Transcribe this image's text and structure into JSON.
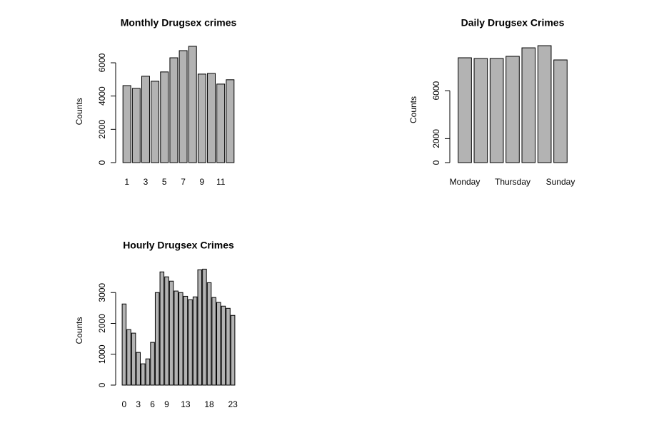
{
  "chart_data": [
    {
      "type": "bar",
      "title": "Monthly Drugsex  crimes",
      "y_label": "Counts",
      "color": "#b3b3b3",
      "categories": [
        "1",
        null,
        "3",
        null,
        "5",
        null,
        "7",
        null,
        "9",
        null,
        "11",
        null
      ],
      "values": [
        4630,
        4460,
        5190,
        4890,
        5450,
        6300,
        6730,
        6990,
        5320,
        5360,
        4720,
        4980
      ],
      "ylim": [
        0,
        7000
      ],
      "yticks": [
        0,
        2000,
        4000,
        6000
      ]
    },
    {
      "type": "bar",
      "title": "Daily  Drugsex  Crimes",
      "y_label": "Counts",
      "color": "#b3b3b3",
      "categories": [
        "Monday",
        null,
        null,
        "Thursday",
        null,
        null,
        "Sunday"
      ],
      "values": [
        8750,
        8690,
        8690,
        8870,
        9580,
        9760,
        8570
      ],
      "ylim": [
        0,
        10000
      ],
      "yticks": [
        0,
        2000,
        6000
      ]
    },
    {
      "type": "bar",
      "title": "Hourly  Drugsex  Crimes",
      "y_label": "Counts",
      "color": "#b3b3b3",
      "categories": [
        "0",
        null,
        null,
        "3",
        null,
        null,
        "6",
        null,
        null,
        "9",
        null,
        null,
        null,
        "13",
        null,
        null,
        null,
        null,
        "18",
        null,
        null,
        null,
        null,
        "23"
      ],
      "values": [
        2630,
        1800,
        1685,
        1060,
        690,
        850,
        1385,
        3000,
        3670,
        3510,
        3370,
        3050,
        3000,
        2880,
        2770,
        2860,
        3740,
        3760,
        3320,
        2840,
        2680,
        2560,
        2490,
        2260
      ],
      "ylim": [
        0,
        4000
      ],
      "yticks": [
        0,
        1000,
        2000,
        3000
      ]
    }
  ]
}
